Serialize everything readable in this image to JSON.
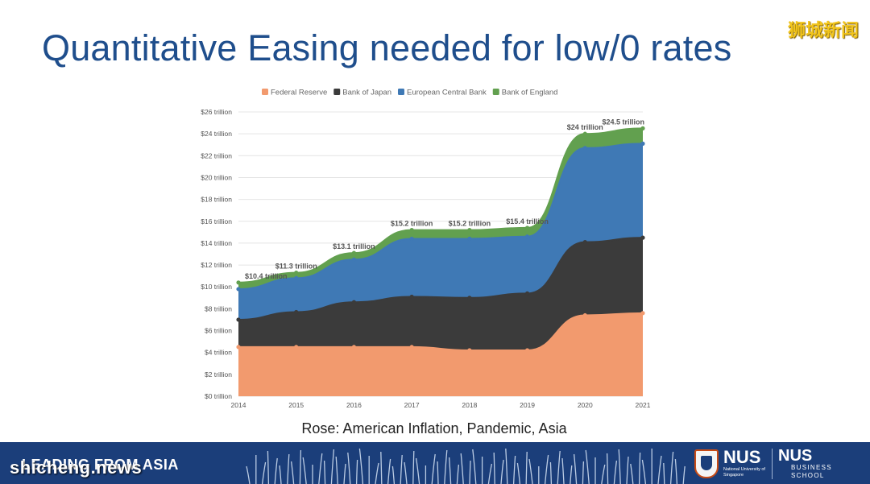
{
  "watermark_top": "狮城新闻",
  "slide": {
    "title": "Quantitative Easing needed for low/0 rates",
    "caption": "Rose: American Inflation, Pandemic, Asia"
  },
  "footer": {
    "leading_text": "LEADING FROM ASIA",
    "watermark_bottom": "shicheng.news",
    "nus_logo_text": "NUS",
    "nus_logo_subtext": "National University of Singapore",
    "nus_business_text": "NUS",
    "nus_business_sub": "BUSINESS SCHOOL"
  },
  "colors": {
    "federal_reserve": "#f29a6e",
    "bank_of_japan": "#3b3b3b",
    "european_central_bank": "#3f79b5",
    "bank_of_england": "#62a04f",
    "title": "#1f4e8c",
    "footer_bg": "#1b3e7a"
  },
  "chart_data": {
    "type": "area",
    "stacked": true,
    "title": "",
    "xlabel": "",
    "ylabel": "",
    "categories": [
      "2014",
      "2015",
      "2016",
      "2017",
      "2018",
      "2019",
      "2020",
      "2021"
    ],
    "y_ticks": [
      "$0 trillion",
      "$2 trillion",
      "$4 trillion",
      "$6 trillion",
      "$8 trillion",
      "$10 trillion",
      "$12 trillion",
      "$14 trillion",
      "$16 trillion",
      "$18 trillion",
      "$20 trillion",
      "$22 trillion",
      "$24 trillion",
      "$26 trillion"
    ],
    "ylim": [
      0,
      26
    ],
    "grid": true,
    "legend_position": "top-center",
    "series": [
      {
        "name": "Federal Reserve",
        "values": [
          4.5,
          4.5,
          4.5,
          4.5,
          4.2,
          4.2,
          7.4,
          7.6
        ]
      },
      {
        "name": "Bank of Japan",
        "values": [
          2.5,
          3.2,
          4.1,
          4.6,
          4.8,
          5.2,
          6.7,
          6.9
        ]
      },
      {
        "name": "European Central Bank",
        "values": [
          2.8,
          3.1,
          3.9,
          5.3,
          5.4,
          5.2,
          8.6,
          8.6
        ]
      },
      {
        "name": "Bank of England",
        "values": [
          0.6,
          0.5,
          0.6,
          0.8,
          0.8,
          0.8,
          1.3,
          1.4
        ]
      }
    ],
    "annotations": [
      {
        "category": "2014",
        "text": "$10.4 trillion"
      },
      {
        "category": "2015",
        "text": "$11.3 trillion"
      },
      {
        "category": "2016",
        "text": "$13.1 trillion"
      },
      {
        "category": "2017",
        "text": "$15.2 trillion"
      },
      {
        "category": "2018",
        "text": "$15.2 trillion"
      },
      {
        "category": "2019",
        "text": "$15.4 trillion"
      },
      {
        "category": "2020",
        "text": "$24 trillion"
      },
      {
        "category": "2021",
        "text": "$24.5 trillion"
      }
    ]
  }
}
